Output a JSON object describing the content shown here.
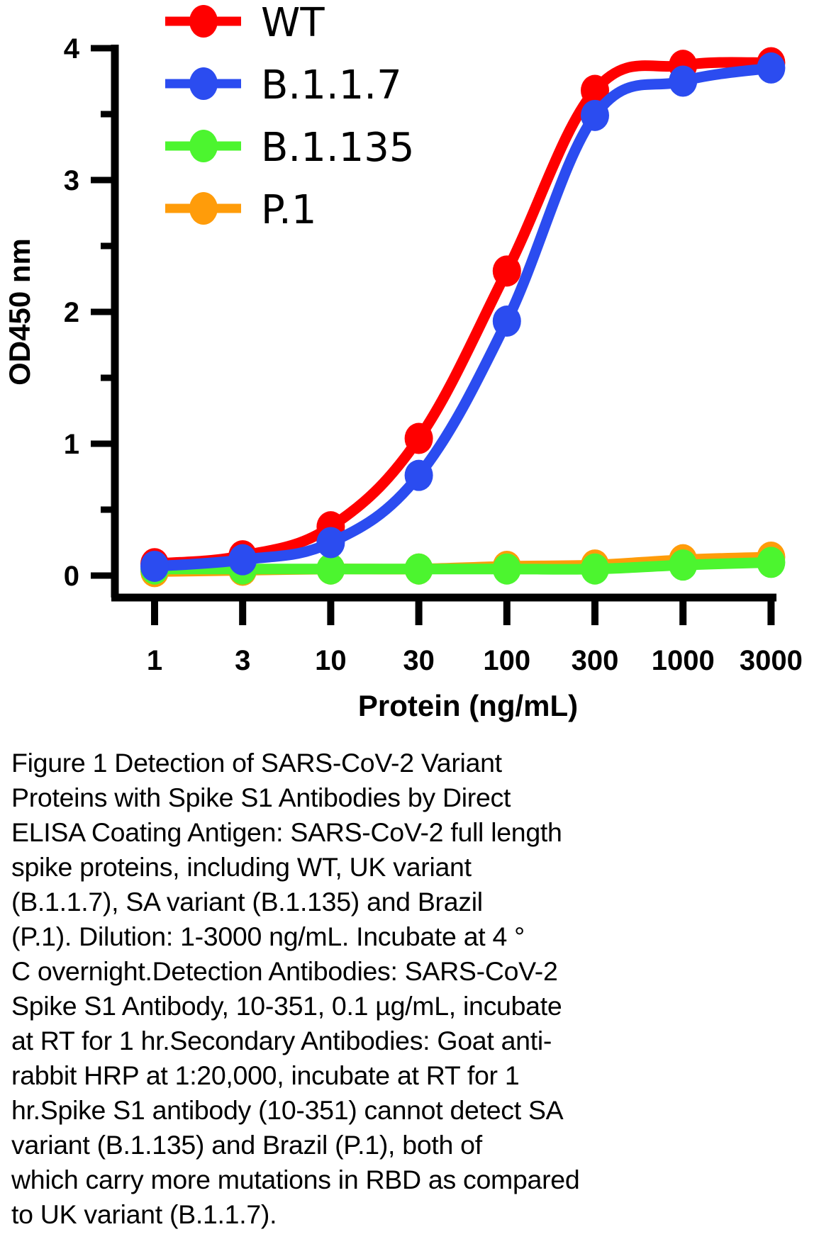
{
  "chart_data": {
    "type": "line",
    "title": "",
    "xlabel": "Protein (ng/mL)",
    "ylabel": "OD450 nm",
    "x_scale": "log",
    "x": [
      1,
      3,
      10,
      30,
      100,
      300,
      1000,
      3000
    ],
    "x_tick_labels": [
      "1",
      "3",
      "10",
      "30",
      "100",
      "300",
      "1000",
      "3000"
    ],
    "y_ticks": [
      0,
      1,
      2,
      3,
      4
    ],
    "y_tick_labels": [
      "0",
      "1",
      "2",
      "3",
      "4"
    ],
    "ylim": [
      0,
      4
    ],
    "grid": false,
    "legend_position": "top-center",
    "series": [
      {
        "name": "WT",
        "color": "#ff0000",
        "values": [
          0.09,
          0.15,
          0.37,
          1.04,
          2.31,
          3.68,
          3.87,
          3.89
        ]
      },
      {
        "name": "B.1.1.7",
        "color": "#2b4cf0",
        "values": [
          0.07,
          0.12,
          0.25,
          0.76,
          1.93,
          3.49,
          3.75,
          3.85
        ]
      },
      {
        "name": "B.1.135",
        "color": "#4cf52f",
        "values": [
          0.05,
          0.05,
          0.05,
          0.05,
          0.05,
          0.05,
          0.08,
          0.1
        ]
      },
      {
        "name": "P.1",
        "color": "#ff9c0a",
        "values": [
          0.03,
          0.04,
          0.05,
          0.05,
          0.07,
          0.08,
          0.12,
          0.14
        ]
      }
    ]
  },
  "caption": "Figure 1 Detection of SARS-CoV-2 Variant\nProteins with Spike S1 Antibodies by Direct\nELISA Coating Antigen: SARS-CoV-2 full length\nspike proteins, including WT, UK variant\n(B.1.1.7), SA variant (B.1.135) and Brazil\n(P.1). Dilution: 1-3000 ng/mL. Incubate at 4 °\nC overnight.Detection Antibodies: SARS-CoV-2\nSpike S1 Antibody, 10-351, 0.1 µg/mL, incubate\nat RT for 1 hr.Secondary Antibodies: Goat anti-\nrabbit HRP at 1:20,000, incubate at RT for 1\nhr.Spike S1 antibody (10-351) cannot detect SA\nvariant (B.1.135) and Brazil (P.1), both of\nwhich carry more mutations in RBD as compared\nto UK variant (B.1.1.7)."
}
